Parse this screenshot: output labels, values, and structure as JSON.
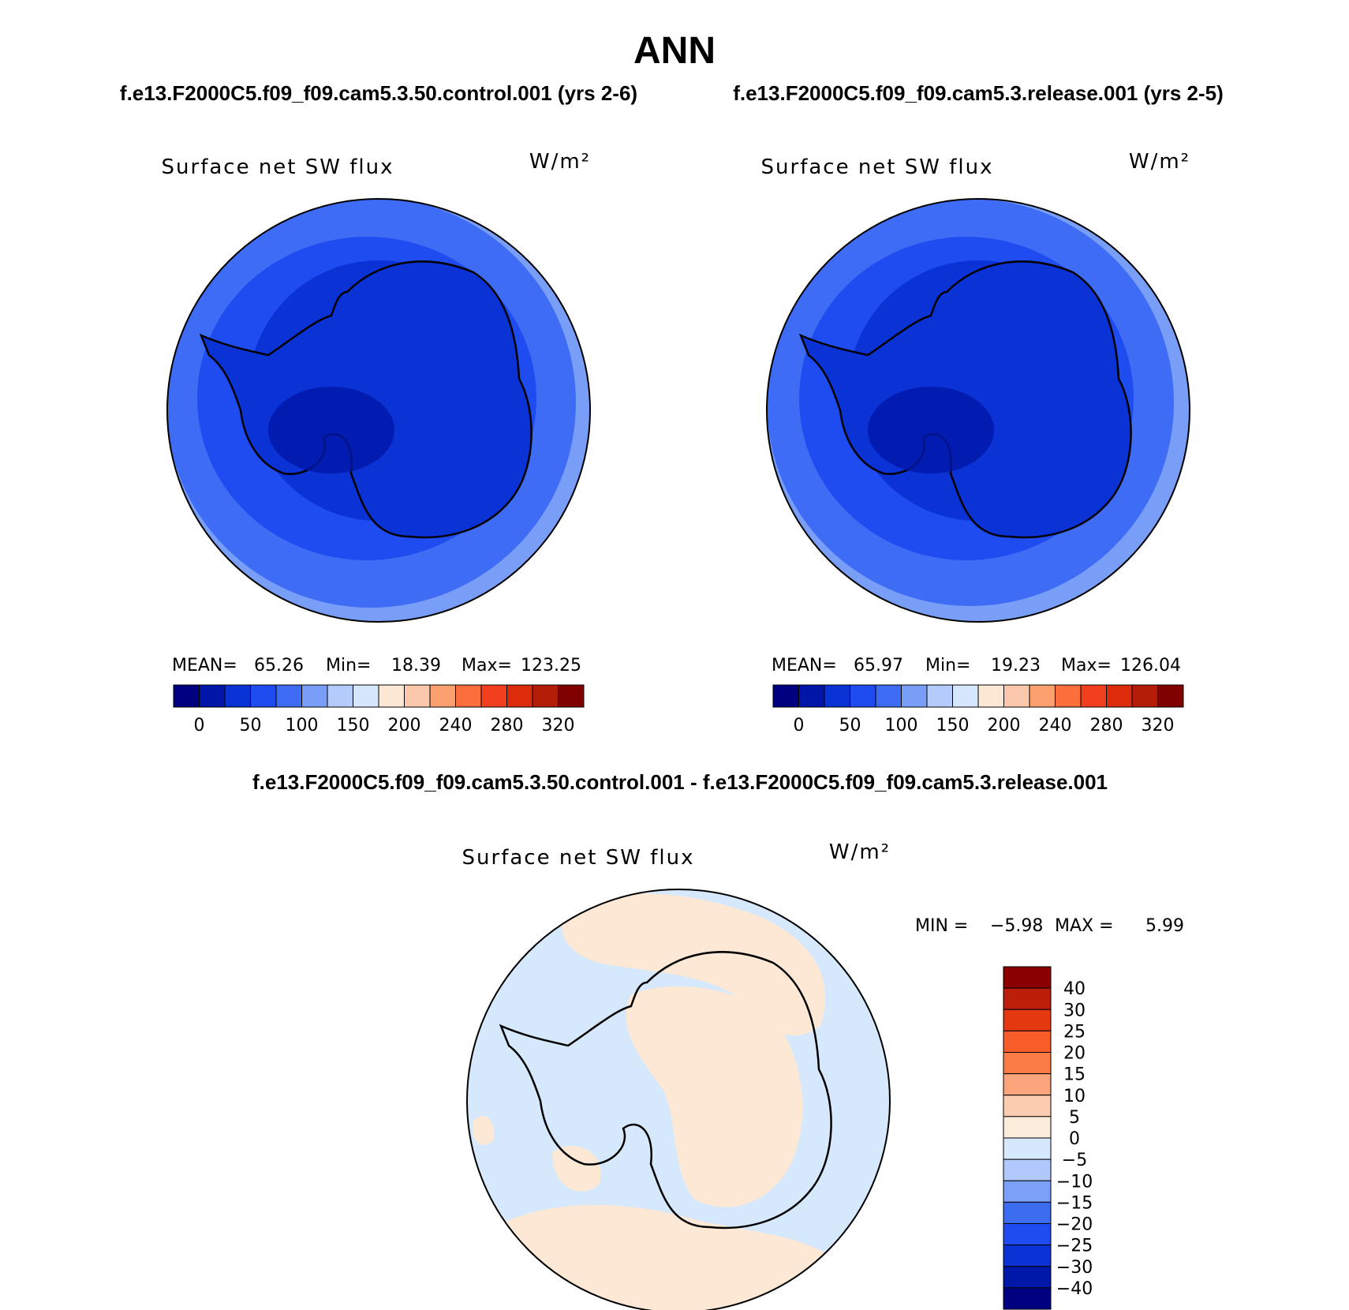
{
  "title": "ANN",
  "top_left_label": "f.e13.F2000C5.f09_f09.cam5.3.50.control.001 (yrs 2-6)",
  "top_right_label": "f.e13.F2000C5.f09_f09.cam5.3.release.001 (yrs 2-5)",
  "diff_label": "f.e13.F2000C5.f09_f09.cam5.3.50.control.001 - f.e13.F2000C5.f09_f09.cam5.3.release.001",
  "chart_data": [
    {
      "type": "heatmap",
      "panel": "control",
      "title": "Surface net SW flux",
      "units": "W/m²",
      "stats": {
        "mean_label": "MEAN=",
        "mean": "65.26",
        "min_label": "Min=",
        "min": "18.39",
        "max_label": "Max=",
        "max": "123.25"
      },
      "colorbar_ticks": [
        "0",
        "50",
        "100",
        "150",
        "200",
        "240",
        "280",
        "320"
      ],
      "colorbar_colors": [
        "#000080",
        "#0016a8",
        "#0a32d4",
        "#1e4cf0",
        "#3f6cf4",
        "#789ef8",
        "#b4ccfc",
        "#d6e6fc",
        "#fce8d4",
        "#fcc8ac",
        "#fca070",
        "#fc6e3c",
        "#f2401e",
        "#dc2c0c",
        "#b41e08",
        "#800000"
      ],
      "projection": "south-polar-stereographic"
    },
    {
      "type": "heatmap",
      "panel": "release",
      "title": "Surface net SW flux",
      "units": "W/m²",
      "stats": {
        "mean_label": "MEAN=",
        "mean": "65.97",
        "min_label": "Min=",
        "min": "19.23",
        "max_label": "Max=",
        "max": "126.04"
      },
      "colorbar_ticks": [
        "0",
        "50",
        "100",
        "150",
        "200",
        "240",
        "280",
        "320"
      ],
      "colorbar_colors": [
        "#000080",
        "#0016a8",
        "#0a32d4",
        "#1e4cf0",
        "#3f6cf4",
        "#789ef8",
        "#b4ccfc",
        "#d6e6fc",
        "#fce8d4",
        "#fcc8ac",
        "#fca070",
        "#fc6e3c",
        "#f2401e",
        "#dc2c0c",
        "#b41e08",
        "#800000"
      ],
      "projection": "south-polar-stereographic"
    },
    {
      "type": "heatmap",
      "panel": "difference",
      "title": "Surface net SW flux",
      "units": "W/m²",
      "stats": {
        "min_label": "MIN =",
        "min": "−5.98",
        "max_label": "MAX =",
        "max": "5.99"
      },
      "colorbar_ticks": [
        "40",
        "30",
        "25",
        "20",
        "15",
        "10",
        "5",
        "0",
        "−5",
        "−10",
        "−15",
        "−20",
        "−25",
        "−30",
        "−40"
      ],
      "colorbar_colors": [
        "#8a0000",
        "#bc1e0a",
        "#e43810",
        "#f85c28",
        "#fc7c48",
        "#fca47c",
        "#fcccb0",
        "#fcecdc",
        "#d6e8fc",
        "#b0c8fc",
        "#7ca0f8",
        "#3c6cf0",
        "#1e4cf0",
        "#0a32d4",
        "#0018a8",
        "#000080"
      ],
      "projection": "south-polar-stereographic"
    }
  ],
  "map_colors": {
    "level_far": "#789ef8",
    "level_outer": "#3f6cf4",
    "level_mid": "#1e4cf0",
    "level_inner": "#0a32d4",
    "level_core": "#0016a8",
    "diff_neg": "#d6e8fc",
    "diff_pos": "#fce8d4"
  }
}
